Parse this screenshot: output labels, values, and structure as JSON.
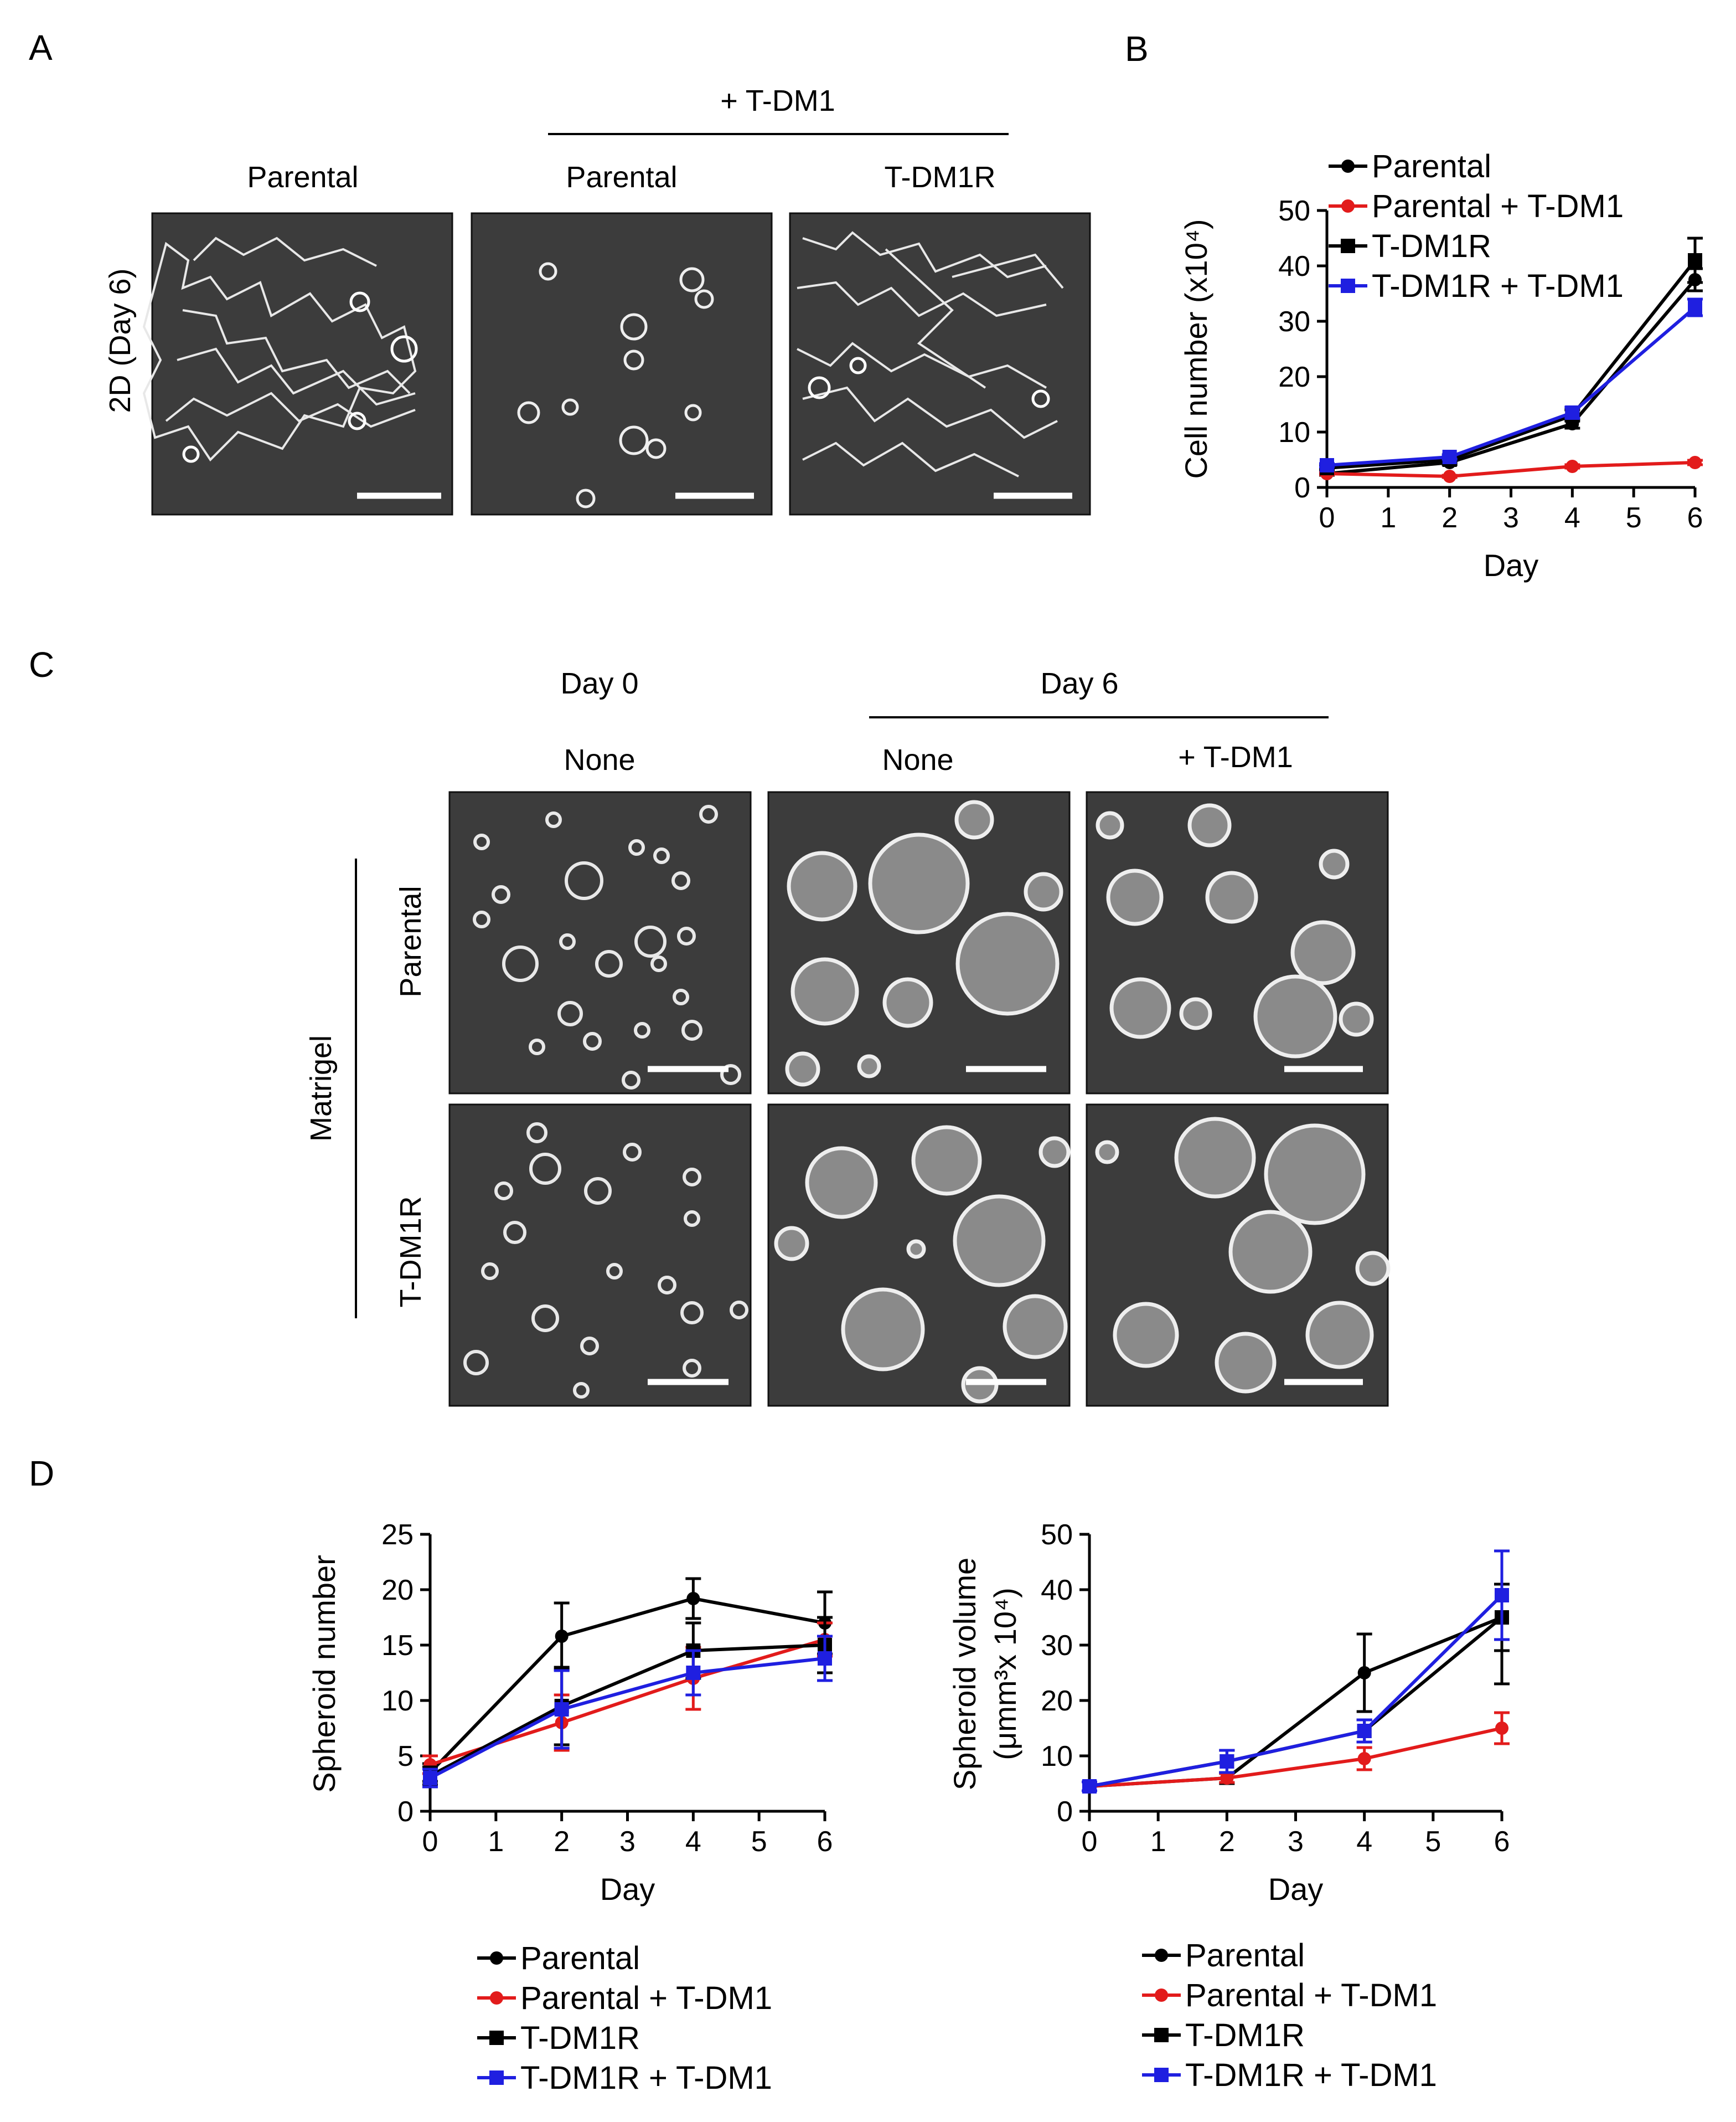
{
  "panels": {
    "a": {
      "letter": "A",
      "treatment_header": "+ T-DM1",
      "col_labels": [
        "Parental",
        "Parental",
        "T-DM1R"
      ],
      "row_label": "2D (Day 6)"
    },
    "b": {
      "letter": "B"
    },
    "c": {
      "letter": "C",
      "day0_header": "Day 0",
      "day6_header": "Day 6",
      "col_labels": [
        "None",
        "None",
        "+ T-DM1"
      ],
      "group_label": "Matrigel",
      "row_labels": [
        "Parental",
        "T-DM1R"
      ]
    },
    "d": {
      "letter": "D"
    }
  },
  "colors": {
    "black": "#000000",
    "red": "#e21b1b",
    "blue": "#1f1fe0"
  },
  "chart_data": [
    {
      "id": "B",
      "type": "line",
      "title": "",
      "xlabel": "Day",
      "ylabel": "Cell number (x10⁴)",
      "x": [
        0,
        2,
        4,
        6
      ],
      "xticks": [
        0,
        1,
        2,
        3,
        4,
        5,
        6
      ],
      "yticks": [
        0,
        10,
        20,
        30,
        40,
        50
      ],
      "xlim": [
        0,
        6
      ],
      "ylim": [
        0,
        50
      ],
      "legend_position": "top-left",
      "series": [
        {
          "name": "Parental",
          "color": "#000000",
          "marker": "circle",
          "values": [
            2.5,
            4.5,
            11.5,
            37.5
          ],
          "errors": [
            0.3,
            0.4,
            0.8,
            2.0
          ]
        },
        {
          "name": "Parental + T-DM1",
          "color": "#e21b1b",
          "marker": "circle",
          "values": [
            2.5,
            2.0,
            3.8,
            4.5
          ],
          "errors": [
            0.2,
            0.2,
            0.3,
            0.4
          ]
        },
        {
          "name": "T-DM1R",
          "color": "#000000",
          "marker": "square",
          "values": [
            3.5,
            5.0,
            13.0,
            41.0
          ],
          "errors": [
            0.3,
            0.4,
            1.0,
            4.0
          ]
        },
        {
          "name": "T-DM1R + T-DM1",
          "color": "#1f1fe0",
          "marker": "square",
          "values": [
            4.0,
            5.5,
            13.5,
            32.5
          ],
          "errors": [
            0.3,
            0.4,
            1.0,
            1.5
          ]
        }
      ]
    },
    {
      "id": "D-left",
      "type": "line",
      "title": "",
      "xlabel": "Day",
      "ylabel": "Spheroid number",
      "x": [
        0,
        2,
        4,
        6
      ],
      "xticks": [
        0,
        1,
        2,
        3,
        4,
        5,
        6
      ],
      "yticks": [
        0,
        5,
        10,
        15,
        20,
        25
      ],
      "xlim": [
        0,
        6
      ],
      "ylim": [
        0,
        25
      ],
      "legend_position": "below",
      "series": [
        {
          "name": "Parental",
          "color": "#000000",
          "marker": "circle",
          "values": [
            3.5,
            15.8,
            19.2,
            17.0
          ],
          "errors": [
            0.8,
            3.0,
            1.8,
            2.8
          ]
        },
        {
          "name": "Parental + T-DM1",
          "color": "#e21b1b",
          "marker": "circle",
          "values": [
            4.2,
            8.0,
            12.0,
            15.5
          ],
          "errors": [
            0.8,
            2.5,
            2.8,
            1.5
          ]
        },
        {
          "name": "T-DM1R",
          "color": "#000000",
          "marker": "square",
          "values": [
            3.2,
            9.5,
            14.5,
            15.0
          ],
          "errors": [
            0.8,
            3.5,
            2.5,
            2.5
          ]
        },
        {
          "name": "T-DM1R + T-DM1",
          "color": "#1f1fe0",
          "marker": "square",
          "values": [
            3.0,
            9.2,
            12.5,
            13.8
          ],
          "errors": [
            0.8,
            3.5,
            2.0,
            2.0
          ]
        }
      ]
    },
    {
      "id": "D-right",
      "type": "line",
      "title": "",
      "xlabel": "Day",
      "ylabel": "Spheroid volume",
      "ylabel_sub": "(μmm³x 10⁴)",
      "x": [
        0,
        2,
        4,
        6
      ],
      "xticks": [
        0,
        1,
        2,
        3,
        4,
        5,
        6
      ],
      "yticks": [
        0,
        10,
        20,
        30,
        40,
        50
      ],
      "xlim": [
        0,
        6
      ],
      "ylim": [
        0,
        50
      ],
      "legend_position": "below",
      "series": [
        {
          "name": "Parental",
          "color": "#000000",
          "marker": "circle",
          "values": [
            4.5,
            6.0,
            25.0,
            35.0
          ],
          "errors": [
            0.8,
            1.0,
            7.0,
            6.0
          ]
        },
        {
          "name": "Parental + T-DM1",
          "color": "#e21b1b",
          "marker": "circle",
          "values": [
            4.5,
            6.0,
            9.5,
            15.0
          ],
          "errors": [
            0.8,
            0.8,
            2.0,
            2.8
          ]
        },
        {
          "name": "T-DM1R",
          "color": "#000000",
          "marker": "square",
          "values": [
            4.5,
            9.0,
            14.5,
            35.0
          ],
          "errors": [
            0.8,
            2.0,
            2.0,
            12.0
          ]
        },
        {
          "name": "T-DM1R + T-DM1",
          "color": "#1f1fe0",
          "marker": "square",
          "values": [
            4.5,
            9.0,
            14.5,
            39.0
          ],
          "errors": [
            0.8,
            2.0,
            2.0,
            8.0
          ]
        }
      ]
    }
  ]
}
